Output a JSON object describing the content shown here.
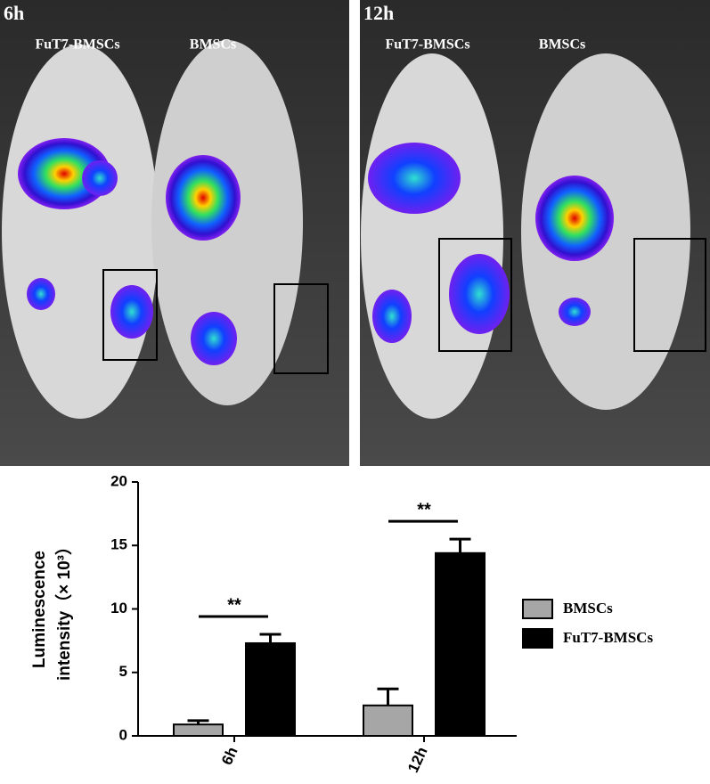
{
  "panels": [
    {
      "time": "6h",
      "left_label": "FuT7-BMSCs",
      "right_label": "BMSCs"
    },
    {
      "time": "12h",
      "left_label": "FuT7-BMSCs",
      "right_label": "BMSCs"
    }
  ],
  "chart_data": {
    "type": "bar",
    "y_label": [
      "Luminescence",
      "intensity（× 10³）"
    ],
    "categories": [
      "6h",
      "12h"
    ],
    "series": [
      {
        "name": "BMSCs",
        "color": "#a6a6a6",
        "values": [
          0.9,
          2.4
        ],
        "errors": [
          0.3,
          1.3
        ]
      },
      {
        "name": "FuT7-BMSCs",
        "color": "#000000",
        "values": [
          7.3,
          14.4
        ],
        "errors": [
          0.7,
          1.1
        ]
      }
    ],
    "annotations": [
      "**",
      "**"
    ],
    "ylim": [
      0,
      20
    ],
    "yticks": [
      0,
      5,
      10,
      15,
      20
    ],
    "legend": "right"
  }
}
